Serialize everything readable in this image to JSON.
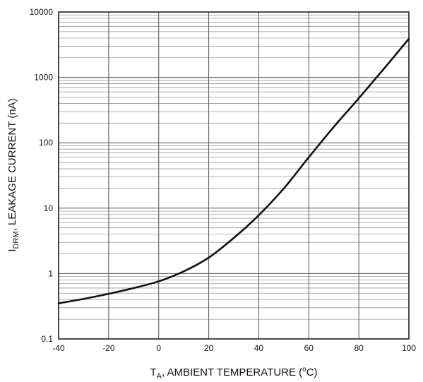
{
  "chart_data": {
    "type": "line",
    "title": "",
    "xlabel": {
      "prefix": "T",
      "subscript": "A",
      "text": ", AMBIENT TEMPERATURE (",
      "superscript": "o",
      "suffix": "C)"
    },
    "ylabel": {
      "prefix": "I",
      "subscript": "DRM",
      "text": ", LEAKAGE CURRENT (nA)"
    },
    "x_scale": "linear",
    "y_scale": "log",
    "xlim": [
      -40,
      100
    ],
    "ylim": [
      0.1,
      10000
    ],
    "x_ticks": [
      -40,
      -20,
      0,
      20,
      40,
      60,
      80,
      100
    ],
    "x_tick_labels": [
      "-40",
      "-20",
      "0",
      "20",
      "40",
      "60",
      "80",
      "100"
    ],
    "y_ticks": [
      0.1,
      1,
      10,
      100,
      1000,
      10000
    ],
    "y_tick_labels": [
      "0.1",
      "1",
      "10",
      "100",
      "1000",
      "10000"
    ],
    "grid": {
      "x_major": true,
      "y_major": true,
      "y_minor": true
    },
    "series": [
      {
        "color": "#111111",
        "x": [
          -40,
          -30,
          -20,
          -10,
          0,
          10,
          20,
          30,
          40,
          50,
          60,
          70,
          80,
          90,
          100
        ],
        "y": [
          0.35,
          0.41,
          0.49,
          0.6,
          0.76,
          1.08,
          1.75,
          3.5,
          7.8,
          20,
          60,
          175,
          480,
          1350,
          3900
        ]
      }
    ]
  }
}
